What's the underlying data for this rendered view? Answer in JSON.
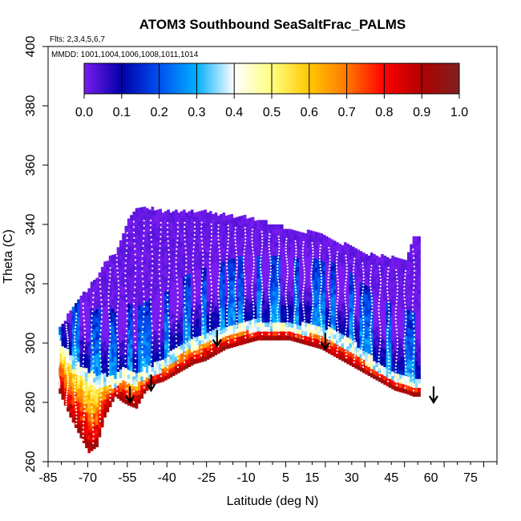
{
  "chart_data": {
    "type": "heatmap",
    "title": "ATOM3 Southbound SeaSaltFrac_PALMS",
    "subtitle_flights": "Flts: 2,3,4,5,6,7",
    "subtitle_dates": "MMDD: 1001,1004,1006,1008,1011,1014",
    "xlabel": "Latitude (deg N)",
    "ylabel": "Theta (C)",
    "xlim": [
      -85,
      85
    ],
    "ylim": [
      260,
      400
    ],
    "x_tick_labels": [
      "-85",
      "-70",
      "-55",
      "-40",
      "-25",
      "-10",
      "5",
      "15",
      "30",
      "45",
      "60",
      "75"
    ],
    "x_tick_values": [
      -85,
      -70,
      -55,
      -40,
      -25,
      -10,
      5,
      15,
      30,
      45,
      60,
      75
    ],
    "y_tick_labels": [
      "260",
      "280",
      "300",
      "320",
      "340",
      "360",
      "380",
      "400"
    ],
    "y_tick_values": [
      260,
      280,
      300,
      320,
      340,
      360,
      380,
      400
    ],
    "colorbar": {
      "range": [
        0.0,
        1.0
      ],
      "tick_labels": [
        "0.0",
        "0.1",
        "0.2",
        "0.3",
        "0.4",
        "0.5",
        "0.6",
        "0.7",
        "0.8",
        "0.9",
        "1.0"
      ],
      "tick_values": [
        0.0,
        0.1,
        0.2,
        0.3,
        0.4,
        0.5,
        0.6,
        0.7,
        0.8,
        0.9,
        1.0
      ],
      "colors": [
        "#7a1cf0",
        "#0000a8",
        "#0050f0",
        "#00b0ff",
        "#ffffff",
        "#ffff80",
        "#ffc800",
        "#ff7800",
        "#ff0000",
        "#b00000",
        "#802020"
      ]
    },
    "domain": {
      "lat": [
        -81,
        -77,
        -73,
        -70,
        -67,
        -64,
        -60,
        -57,
        -55,
        -52,
        -49,
        -46,
        -42,
        -38,
        -34,
        -30,
        -26,
        -22,
        -18,
        -14,
        -10,
        -6,
        -2,
        2,
        6,
        10,
        14,
        18,
        22,
        26,
        30,
        34,
        38,
        42,
        46,
        50,
        53,
        56
      ],
      "bottom": [
        283,
        275,
        268,
        263,
        265,
        275,
        282,
        280,
        279,
        278,
        283,
        286,
        287,
        289,
        291,
        293,
        294,
        296,
        298,
        299,
        300,
        301,
        301,
        301,
        301,
        300,
        299,
        298,
        296,
        294,
        292,
        290,
        288,
        286,
        284,
        283,
        282,
        282
      ],
      "top": [
        305,
        310,
        315,
        318,
        322,
        327,
        330,
        336,
        342,
        345,
        345,
        345,
        344,
        344,
        344,
        344,
        344,
        343,
        343,
        342,
        342,
        341,
        340,
        339,
        338,
        337,
        337,
        336,
        335,
        333,
        332,
        330,
        329,
        329,
        328,
        327,
        335,
        335
      ],
      "seasalt_top": [
        300,
        296,
        292,
        290,
        288,
        289,
        288,
        291,
        290,
        289,
        291,
        292,
        294,
        297,
        300,
        301,
        303,
        304,
        305,
        306,
        307,
        307,
        307,
        307,
        307,
        306,
        306,
        305,
        304,
        302,
        300,
        297,
        294,
        292,
        290,
        289,
        288,
        288
      ]
    },
    "arrows": [
      {
        "lat": -54,
        "theta": 280
      },
      {
        "lat": -46,
        "theta": 284
      },
      {
        "lat": -21,
        "theta": 299
      },
      {
        "lat": 20,
        "theta": 298
      },
      {
        "lat": 61,
        "theta": 280
      }
    ],
    "seed": 20241014
  }
}
